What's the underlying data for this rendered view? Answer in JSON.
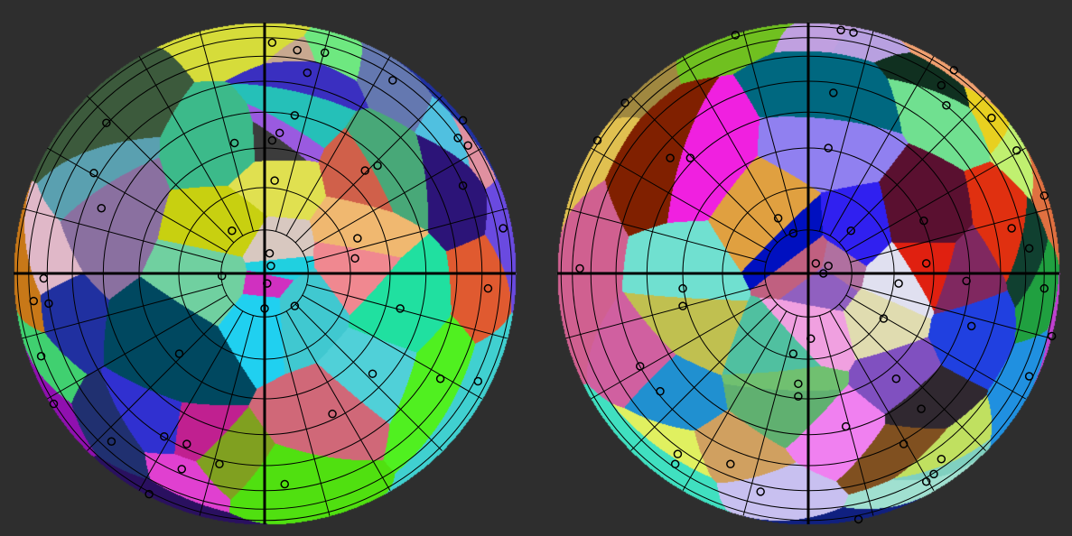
{
  "background": "#2e2e2e",
  "grid": {
    "parallel_step_deg": 10,
    "meridian_step_deg": 15,
    "line_color": "#000000",
    "seed_stroke": "#000000"
  },
  "hemispheres": [
    {
      "name": "left",
      "seeds": [
        [
          0.03,
          0.92,
          "#d6dc3a"
        ],
        [
          0.13,
          0.89,
          "#c8a890"
        ],
        [
          0.24,
          0.88,
          "#6ee880"
        ],
        [
          0.17,
          0.8,
          "#3a2fc0"
        ],
        [
          0.51,
          0.77,
          "#6478b0"
        ],
        [
          -0.63,
          0.6,
          "#3c5a3c"
        ],
        [
          0.12,
          0.63,
          "#25c0b8"
        ],
        [
          -0.12,
          0.52,
          "#3cba8a"
        ],
        [
          0.03,
          0.53,
          "#3c3c3c"
        ],
        [
          0.06,
          0.56,
          "#9a5ae0"
        ],
        [
          0.4,
          0.41,
          "#d0604a"
        ],
        [
          0.45,
          0.43,
          "#48a878"
        ],
        [
          0.79,
          0.61,
          "#2030a0"
        ],
        [
          0.77,
          0.54,
          "#50c0e0"
        ],
        [
          0.81,
          0.51,
          "#e090a0"
        ],
        [
          0.79,
          0.35,
          "#2c1478"
        ],
        [
          0.95,
          0.18,
          "#6a4ae0"
        ],
        [
          -0.68,
          0.4,
          "#5aa0b0"
        ],
        [
          -0.65,
          0.26,
          "#8a70a0"
        ],
        [
          0.04,
          0.37,
          "#e0e050"
        ],
        [
          -0.13,
          0.17,
          "#c8d010"
        ],
        [
          0.37,
          0.14,
          "#f0b870"
        ],
        [
          0.36,
          0.06,
          "#f08890"
        ],
        [
          0.02,
          0.08,
          "#d8c8c0"
        ],
        [
          0.025,
          0.03,
          "#20d0e0"
        ],
        [
          0.01,
          -0.04,
          "#d030c0"
        ],
        [
          -0.17,
          -0.01,
          "#70d0a0"
        ],
        [
          -0.88,
          -0.02,
          "#e0b8c8"
        ],
        [
          -0.86,
          -0.12,
          "#2030a0"
        ],
        [
          -0.92,
          -0.11,
          "#c87818"
        ],
        [
          0.12,
          -0.13,
          "#40c8d0"
        ],
        [
          0.0,
          -0.14,
          "#20d0f0"
        ],
        [
          0.89,
          -0.06,
          "#e05a30"
        ],
        [
          0.54,
          -0.14,
          "#20e0a0"
        ],
        [
          -0.89,
          -0.33,
          "#40d070"
        ],
        [
          -0.34,
          -0.32,
          "#004860"
        ],
        [
          -0.84,
          -0.52,
          "#9010b0"
        ],
        [
          0.43,
          -0.4,
          "#50d0d8"
        ],
        [
          0.7,
          -0.42,
          "#50f020"
        ],
        [
          0.85,
          -0.43,
          "#40d0d0"
        ],
        [
          0.27,
          -0.56,
          "#d06878"
        ],
        [
          -0.61,
          -0.67,
          "#203070"
        ],
        [
          -0.4,
          -0.65,
          "#3030d0"
        ],
        [
          -0.31,
          -0.68,
          "#c02090"
        ],
        [
          -0.18,
          -0.76,
          "#80a020"
        ],
        [
          -0.33,
          -0.78,
          "#e040d0"
        ],
        [
          0.08,
          -0.84,
          "#50e010"
        ],
        [
          -0.46,
          -0.88,
          "#2a1060"
        ]
      ]
    },
    {
      "name": "right",
      "seeds": [
        [
          -0.29,
          0.95,
          "#70c020"
        ],
        [
          0.13,
          0.97,
          "#c0a0e0"
        ],
        [
          0.18,
          0.96,
          "#b8a0e0"
        ],
        [
          0.58,
          0.81,
          "#f0a070"
        ],
        [
          0.53,
          0.75,
          "#103020"
        ],
        [
          0.1,
          0.72,
          "#006880"
        ],
        [
          -0.73,
          0.68,
          "#a08840"
        ],
        [
          0.55,
          0.67,
          "#70e090"
        ],
        [
          0.73,
          0.62,
          "#e8d020"
        ],
        [
          0.83,
          0.49,
          "#c0f070"
        ],
        [
          -0.84,
          0.53,
          "#e0c050"
        ],
        [
          -0.55,
          0.46,
          "#802000"
        ],
        [
          -0.47,
          0.46,
          "#f020e0"
        ],
        [
          0.08,
          0.5,
          "#9080f0"
        ],
        [
          0.94,
          0.31,
          "#e07040"
        ],
        [
          0.46,
          0.21,
          "#5a1030"
        ],
        [
          -0.12,
          0.22,
          "#e0a040"
        ],
        [
          -0.06,
          0.16,
          "#0010c0"
        ],
        [
          0.17,
          0.17,
          "#3020f0"
        ],
        [
          0.81,
          0.18,
          "#e03010"
        ],
        [
          0.88,
          0.1,
          "#104030"
        ],
        [
          0.03,
          0.04,
          "#c06080"
        ],
        [
          0.08,
          0.03,
          "#b070a0"
        ],
        [
          0.06,
          0.0,
          "#9060c0"
        ],
        [
          0.47,
          0.04,
          "#e02010"
        ],
        [
          0.36,
          -0.04,
          "#e0e0f0"
        ],
        [
          0.63,
          -0.03,
          "#802860"
        ],
        [
          0.94,
          -0.06,
          "#20a040"
        ],
        [
          -0.91,
          0.02,
          "#d06090"
        ],
        [
          -0.5,
          -0.06,
          "#70e0d0"
        ],
        [
          -0.5,
          -0.13,
          "#c0c050"
        ],
        [
          0.3,
          -0.18,
          "#e0dcb0"
        ],
        [
          0.65,
          -0.21,
          "#2040e0"
        ],
        [
          0.97,
          -0.25,
          "#c040d0"
        ],
        [
          0.01,
          -0.26,
          "#f0a0e0"
        ],
        [
          -0.06,
          -0.32,
          "#50c0a0"
        ],
        [
          -0.67,
          -0.37,
          "#d060a0"
        ],
        [
          0.35,
          -0.42,
          "#8050c0"
        ],
        [
          0.88,
          -0.41,
          "#2090e0"
        ],
        [
          -0.04,
          -0.44,
          "#70c070"
        ],
        [
          -0.04,
          -0.49,
          "#60b070"
        ],
        [
          -0.59,
          -0.47,
          "#2090d0"
        ],
        [
          0.45,
          -0.54,
          "#302830"
        ],
        [
          0.15,
          -0.61,
          "#f080f0"
        ],
        [
          -0.52,
          -0.72,
          "#e0f060"
        ],
        [
          -0.53,
          -0.76,
          "#40e0c0"
        ],
        [
          -0.31,
          -0.76,
          "#d0a060"
        ],
        [
          0.38,
          -0.68,
          "#805020"
        ],
        [
          0.53,
          -0.74,
          "#c0e060"
        ],
        [
          0.5,
          -0.8,
          "#80d0c0"
        ],
        [
          0.47,
          -0.83,
          "#a0e0d0"
        ],
        [
          -0.19,
          -0.87,
          "#c8c0f0"
        ],
        [
          0.2,
          -0.98,
          "#102080"
        ]
      ]
    }
  ]
}
